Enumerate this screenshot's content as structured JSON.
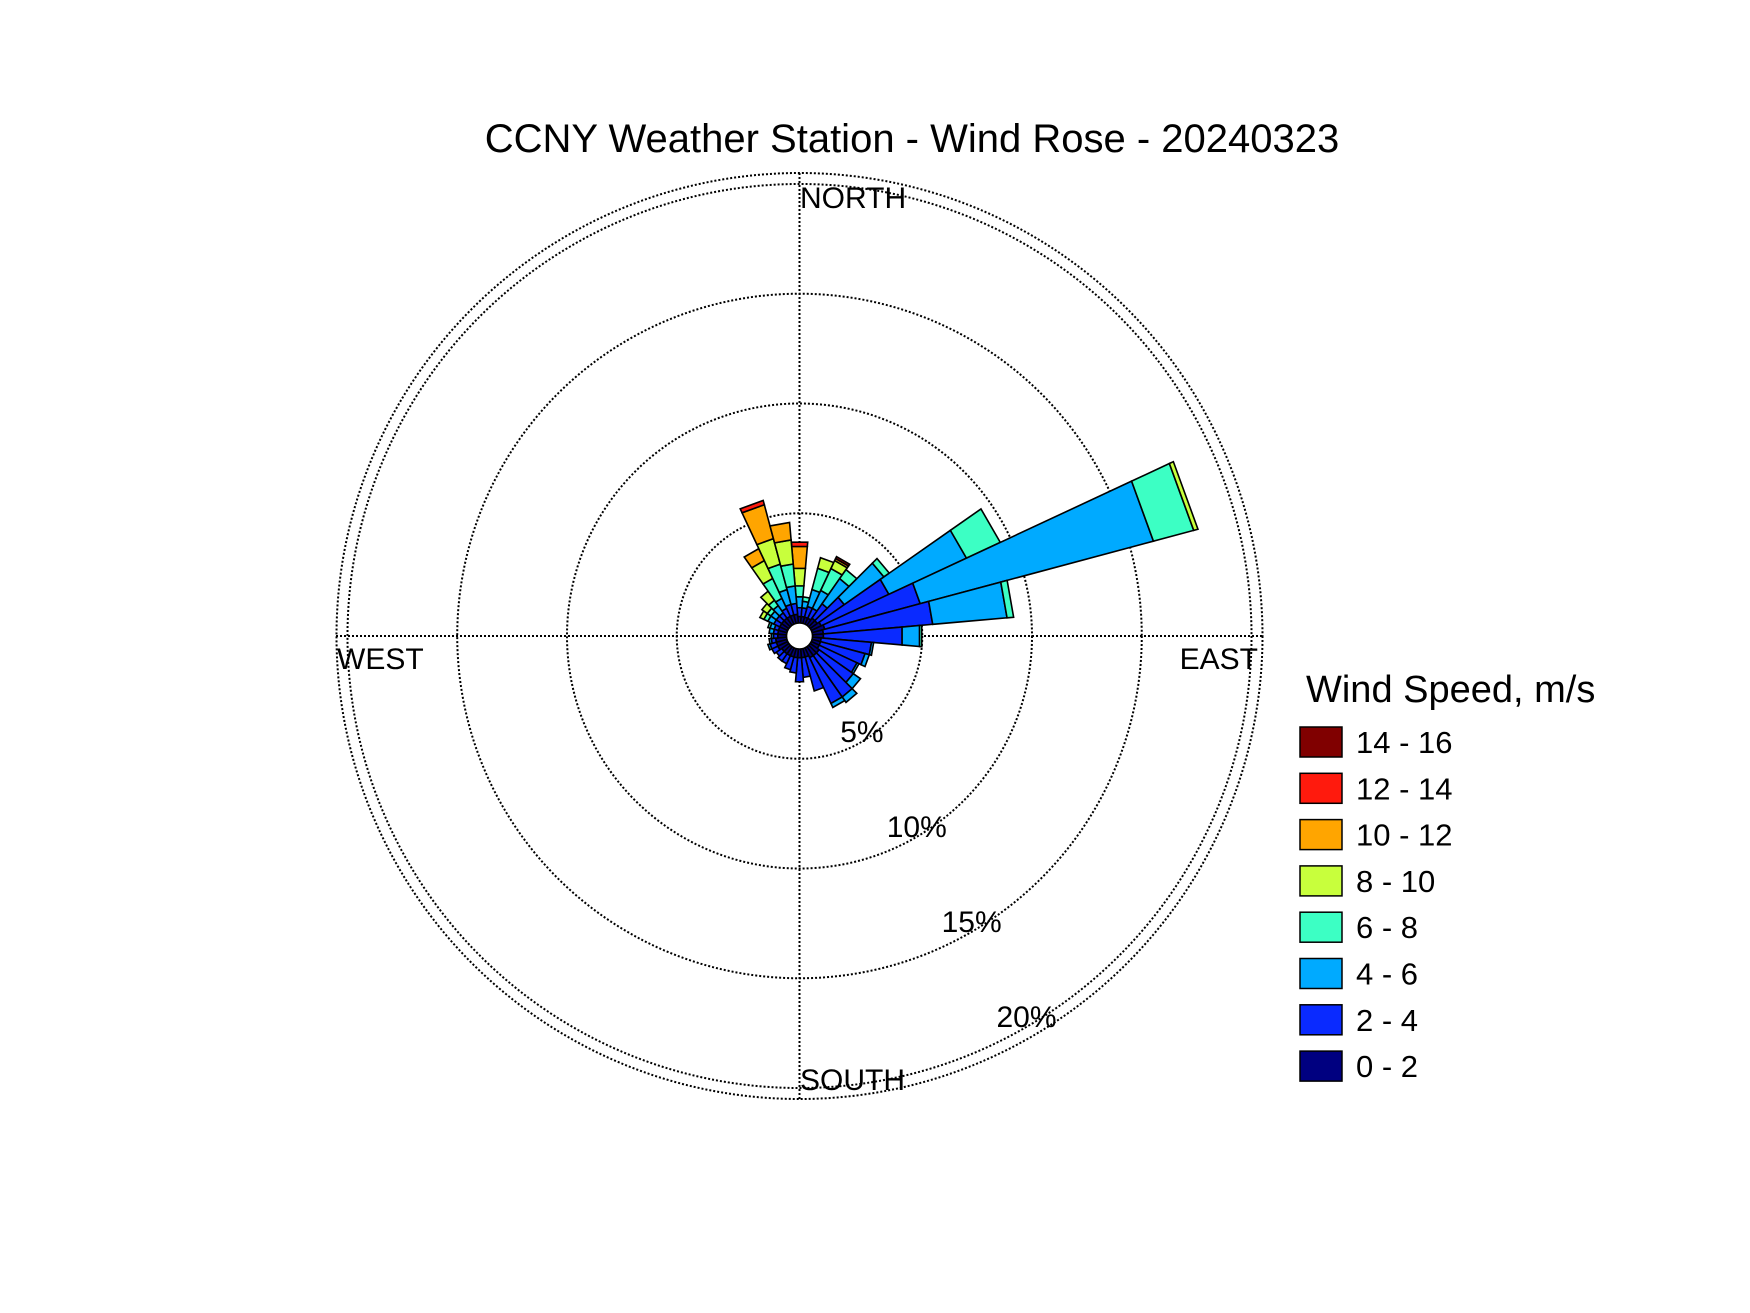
{
  "chart_data": {
    "type": "wind-rose",
    "title": "CCNY Weather Station - Wind Rose - 20240323",
    "directions": {
      "north": "NORTH",
      "east": "EAST",
      "south": "SOUTH",
      "west": "WEST"
    },
    "radial_axis": {
      "unit": "%",
      "ticks": [
        5,
        10,
        15,
        20
      ],
      "tick_labels": [
        "5%",
        "10%",
        "15%",
        "20%"
      ],
      "range": [
        0,
        20.5
      ]
    },
    "grid": true,
    "legend": {
      "title": "Wind Speed, m/s",
      "placement": "right",
      "entries": [
        {
          "label": "14 - 16",
          "color": "#800000"
        },
        {
          "label": "12 - 14",
          "color": "#ff1a0d"
        },
        {
          "label": "10 - 12",
          "color": "#ffa500"
        },
        {
          "label": "8 - 10",
          "color": "#c8ff3c"
        },
        {
          "label": "6 - 8",
          "color": "#3cffc4"
        },
        {
          "label": "4 - 6",
          "color": "#00aaff"
        },
        {
          "label": "2 - 4",
          "color": "#0a2aff"
        },
        {
          "label": "0 - 2",
          "color": "#000080"
        }
      ]
    },
    "speed_bins": [
      "0 - 2",
      "2 - 4",
      "4 - 6",
      "6 - 8",
      "8 - 10",
      "10 - 12",
      "12 - 14",
      "14 - 16"
    ],
    "sector_width_deg": 10,
    "sectors": [
      {
        "direction_deg": 0,
        "frequencies": [
          0.3,
          0.4,
          0.5,
          0.5,
          0.8,
          1.0,
          0.2,
          0
        ]
      },
      {
        "direction_deg": 10,
        "frequencies": [
          0.3,
          0.4,
          0.3,
          0.2,
          0,
          0,
          0,
          0
        ]
      },
      {
        "direction_deg": 20,
        "frequencies": [
          0.3,
          0.5,
          0.8,
          1.0,
          0.5,
          0,
          0,
          0
        ]
      },
      {
        "direction_deg": 30,
        "frequencies": [
          0.3,
          0.5,
          0.9,
          1.1,
          0.4,
          0.1,
          0,
          0.1
        ]
      },
      {
        "direction_deg": 40,
        "frequencies": [
          0.4,
          0.8,
          1.4,
          0.5,
          0,
          0,
          0,
          0
        ]
      },
      {
        "direction_deg": 50,
        "frequencies": [
          0.4,
          1.5,
          2.2,
          0.3,
          0,
          0,
          0,
          0
        ]
      },
      {
        "direction_deg": 60,
        "frequencies": [
          0.5,
          3.4,
          3.9,
          1.7,
          0,
          0,
          0,
          0
        ]
      },
      {
        "direction_deg": 70,
        "frequencies": [
          0.6,
          4.5,
          11.0,
          1.9,
          0.2,
          0,
          0,
          0
        ]
      },
      {
        "direction_deg": 80,
        "frequencies": [
          0.5,
          5.0,
          3.4,
          0.3,
          0,
          0,
          0,
          0
        ]
      },
      {
        "direction_deg": 90,
        "frequencies": [
          0.5,
          3.6,
          0.8,
          0.1,
          0,
          0,
          0,
          0
        ]
      },
      {
        "direction_deg": 100,
        "frequencies": [
          0.4,
          2.3,
          0.1,
          0,
          0,
          0,
          0,
          0
        ]
      },
      {
        "direction_deg": 110,
        "frequencies": [
          0.4,
          2.1,
          0.2,
          0,
          0,
          0,
          0,
          0
        ]
      },
      {
        "direction_deg": 120,
        "frequencies": [
          0.4,
          1.9,
          0.1,
          0,
          0,
          0,
          0,
          0
        ]
      },
      {
        "direction_deg": 130,
        "frequencies": [
          0.5,
          1.9,
          0.4,
          0,
          0,
          0,
          0,
          0
        ]
      },
      {
        "direction_deg": 140,
        "frequencies": [
          0.5,
          2.3,
          0.3,
          0,
          0,
          0,
          0,
          0
        ]
      },
      {
        "direction_deg": 150,
        "frequencies": [
          0.5,
          2.3,
          0.2,
          0,
          0,
          0,
          0,
          0
        ]
      },
      {
        "direction_deg": 160,
        "frequencies": [
          0.4,
          1.6,
          0,
          0,
          0,
          0,
          0,
          0
        ]
      },
      {
        "direction_deg": 170,
        "frequencies": [
          0.4,
          0.9,
          0,
          0,
          0,
          0,
          0,
          0
        ]
      },
      {
        "direction_deg": 180,
        "frequencies": [
          0.4,
          1.1,
          0,
          0,
          0,
          0,
          0,
          0
        ]
      },
      {
        "direction_deg": 190,
        "frequencies": [
          0.4,
          0.7,
          0,
          0,
          0,
          0,
          0,
          0
        ]
      },
      {
        "direction_deg": 200,
        "frequencies": [
          0.4,
          0.6,
          0,
          0,
          0,
          0,
          0,
          0
        ]
      },
      {
        "direction_deg": 210,
        "frequencies": [
          0.4,
          0.4,
          0,
          0,
          0,
          0,
          0,
          0
        ]
      },
      {
        "direction_deg": 220,
        "frequencies": [
          0.4,
          0.4,
          0,
          0,
          0,
          0,
          0,
          0
        ]
      },
      {
        "direction_deg": 230,
        "frequencies": [
          0.4,
          0.3,
          0,
          0,
          0,
          0,
          0,
          0
        ]
      },
      {
        "direction_deg": 240,
        "frequencies": [
          0.5,
          0.3,
          0,
          0,
          0,
          0,
          0,
          0
        ]
      },
      {
        "direction_deg": 250,
        "frequencies": [
          0.5,
          0.3,
          0.1,
          0,
          0,
          0,
          0,
          0
        ]
      },
      {
        "direction_deg": 260,
        "frequencies": [
          0.5,
          0.2,
          0.1,
          0,
          0,
          0,
          0,
          0
        ]
      },
      {
        "direction_deg": 270,
        "frequencies": [
          0.4,
          0.2,
          0.1,
          0,
          0,
          0,
          0,
          0
        ]
      },
      {
        "direction_deg": 280,
        "frequencies": [
          0.4,
          0.2,
          0.2,
          0,
          0,
          0,
          0,
          0
        ]
      },
      {
        "direction_deg": 290,
        "frequencies": [
          0.4,
          0.2,
          0.2,
          0.1,
          0,
          0,
          0,
          0
        ]
      },
      {
        "direction_deg": 300,
        "frequencies": [
          0.4,
          0.3,
          0.3,
          0.2,
          0.2,
          0,
          0,
          0
        ]
      },
      {
        "direction_deg": 310,
        "frequencies": [
          0.4,
          0.3,
          0.3,
          0.2,
          0.3,
          0,
          0,
          0
        ]
      },
      {
        "direction_deg": 320,
        "frequencies": [
          0.4,
          0.3,
          0.4,
          0.3,
          0.5,
          0,
          0,
          0
        ]
      },
      {
        "direction_deg": 330,
        "frequencies": [
          0.4,
          0.4,
          0.5,
          1.0,
          0.9,
          0.6,
          0,
          0
        ]
      },
      {
        "direction_deg": 340,
        "frequencies": [
          0.4,
          0.5,
          0.7,
          1.2,
          1.2,
          1.6,
          0.2,
          0
        ]
      },
      {
        "direction_deg": 350,
        "frequencies": [
          0.4,
          0.5,
          0.8,
          1.0,
          1.1,
          0.8,
          0,
          0
        ]
      }
    ]
  }
}
